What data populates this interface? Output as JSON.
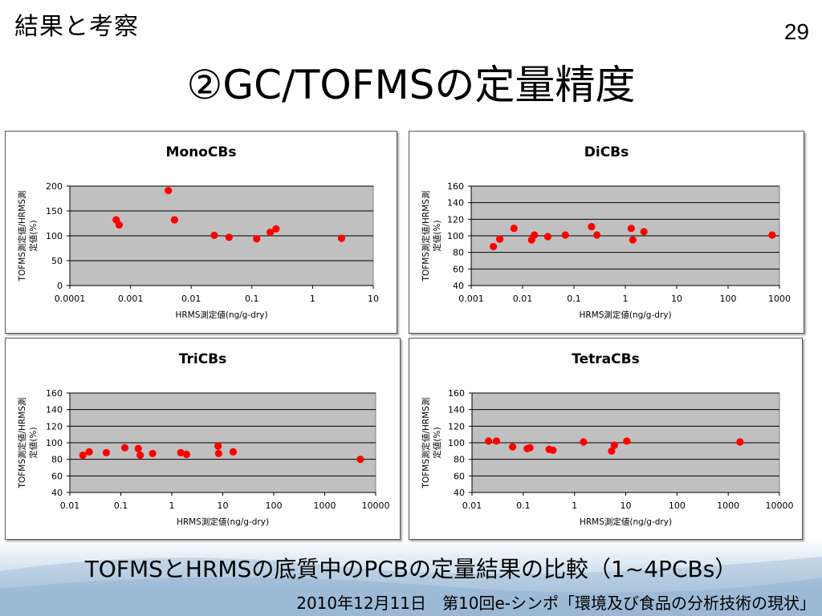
{
  "slide": {
    "section_label": "結果と考察",
    "page_number": "29",
    "title": "②GC/TOFMSの定量精度",
    "caption": "TOFMSとHRMSの底質中のPCBの定量結果の比較（1~4PCBs）",
    "footer": "2010年12月11日　第10回e-シンポ「環境及び食品の分析技術の現状」"
  },
  "colors": {
    "plot_background": "#c0c0c0",
    "marker": "#ff0000",
    "gridline": "#000000"
  },
  "chart_data": [
    {
      "type": "scatter",
      "title": "MonoCBs",
      "xlabel": "HRMS測定値(ng/g-dry)",
      "ylabel_lines": [
        "TOFMS測定値/HRMS測",
        "定値(%)"
      ],
      "x_scale": "log",
      "xlim": [
        0.0001,
        10
      ],
      "x_ticks": [
        "0.0001",
        "0.001",
        "0.01",
        "0.1",
        "1",
        "10"
      ],
      "ylim": [
        0,
        200
      ],
      "y_ticks": [
        "0",
        "50",
        "100",
        "150",
        "200"
      ],
      "grid": true,
      "points": [
        {
          "x": 0.00058,
          "y": 132
        },
        {
          "x": 0.00065,
          "y": 122
        },
        {
          "x": 0.0042,
          "y": 191
        },
        {
          "x": 0.0053,
          "y": 132
        },
        {
          "x": 0.024,
          "y": 101
        },
        {
          "x": 0.042,
          "y": 97
        },
        {
          "x": 0.12,
          "y": 94
        },
        {
          "x": 0.2,
          "y": 107
        },
        {
          "x": 0.25,
          "y": 114
        },
        {
          "x": 3.0,
          "y": 95
        }
      ]
    },
    {
      "type": "scatter",
      "title": "DiCBs",
      "xlabel": "HRMS測定値(ng/g-dry)",
      "ylabel_lines": [
        "TOFMS測定値/HRMS測",
        "定値(%)"
      ],
      "x_scale": "log",
      "xlim": [
        0.001,
        1000
      ],
      "x_ticks": [
        "0.001",
        "0.01",
        "0.1",
        "1",
        "10",
        "100",
        "1000"
      ],
      "ylim": [
        40,
        160
      ],
      "y_ticks": [
        "40",
        "60",
        "80",
        "100",
        "120",
        "140",
        "160"
      ],
      "grid": true,
      "points": [
        {
          "x": 0.0027,
          "y": 87
        },
        {
          "x": 0.0036,
          "y": 96
        },
        {
          "x": 0.0068,
          "y": 109
        },
        {
          "x": 0.015,
          "y": 95
        },
        {
          "x": 0.017,
          "y": 101
        },
        {
          "x": 0.031,
          "y": 99
        },
        {
          "x": 0.068,
          "y": 101
        },
        {
          "x": 0.22,
          "y": 111
        },
        {
          "x": 0.28,
          "y": 101
        },
        {
          "x": 1.3,
          "y": 109
        },
        {
          "x": 1.4,
          "y": 95
        },
        {
          "x": 2.3,
          "y": 105
        },
        {
          "x": 720,
          "y": 101
        }
      ]
    },
    {
      "type": "scatter",
      "title": "TriCBs",
      "xlabel": "HRMS測定値(ng/g-dry)",
      "ylabel_lines": [
        "TOFMS測定値/HRMS測",
        "定値(%)"
      ],
      "x_scale": "log",
      "xlim": [
        0.01,
        10000
      ],
      "x_ticks": [
        "0.01",
        "0.1",
        "1",
        "10",
        "100",
        "1000",
        "10000"
      ],
      "ylim": [
        40,
        160
      ],
      "y_ticks": [
        "40",
        "60",
        "80",
        "100",
        "120",
        "140",
        "160"
      ],
      "grid": true,
      "points": [
        {
          "x": 0.018,
          "y": 85
        },
        {
          "x": 0.024,
          "y": 89
        },
        {
          "x": 0.052,
          "y": 88
        },
        {
          "x": 0.12,
          "y": 94
        },
        {
          "x": 0.22,
          "y": 93
        },
        {
          "x": 0.24,
          "y": 85
        },
        {
          "x": 0.42,
          "y": 87
        },
        {
          "x": 1.5,
          "y": 88
        },
        {
          "x": 1.95,
          "y": 86
        },
        {
          "x": 8.1,
          "y": 96
        },
        {
          "x": 8.3,
          "y": 87
        },
        {
          "x": 16,
          "y": 89
        },
        {
          "x": 5000,
          "y": 80
        }
      ]
    },
    {
      "type": "scatter",
      "title": "TetraCBs",
      "xlabel": "HRMS測定値(ng/g-dry)",
      "ylabel_lines": [
        "TOFMS測定値/HRMS測",
        "定値(%)"
      ],
      "x_scale": "log",
      "xlim": [
        0.01,
        10000
      ],
      "x_ticks": [
        "0.01",
        "0.1",
        "1",
        "10",
        "100",
        "1000",
        "10000"
      ],
      "ylim": [
        40,
        160
      ],
      "y_ticks": [
        "40",
        "60",
        "80",
        "100",
        "120",
        "140",
        "160"
      ],
      "grid": true,
      "points": [
        {
          "x": 0.021,
          "y": 102
        },
        {
          "x": 0.03,
          "y": 102
        },
        {
          "x": 0.062,
          "y": 95
        },
        {
          "x": 0.12,
          "y": 93
        },
        {
          "x": 0.135,
          "y": 94
        },
        {
          "x": 0.32,
          "y": 92
        },
        {
          "x": 0.38,
          "y": 91
        },
        {
          "x": 1.5,
          "y": 101
        },
        {
          "x": 5.3,
          "y": 90
        },
        {
          "x": 6.0,
          "y": 97
        },
        {
          "x": 10.5,
          "y": 102
        },
        {
          "x": 1700,
          "y": 101
        }
      ]
    }
  ]
}
